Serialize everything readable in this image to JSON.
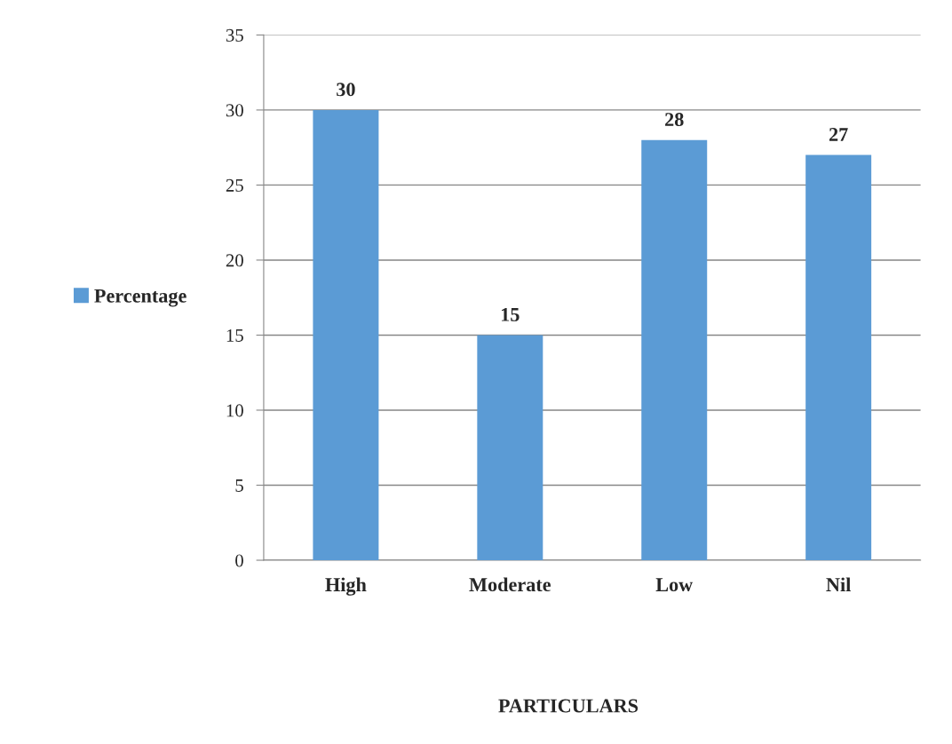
{
  "chart_data": {
    "type": "bar",
    "annotations": [
      "PARTICULARS"
    ],
    "categories": [
      "High",
      "Moderate",
      "Low",
      "Nil"
    ],
    "series": [
      {
        "name": "Percentage",
        "color": "#5b9bd5",
        "values": [
          30,
          15,
          28,
          27
        ]
      }
    ],
    "ylim": [
      0,
      35
    ],
    "yticks": [
      0,
      5,
      10,
      15,
      20,
      25,
      30,
      35
    ],
    "grid": "y",
    "legend": "left",
    "data_labels": true
  }
}
